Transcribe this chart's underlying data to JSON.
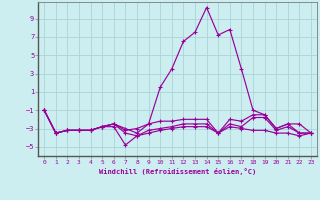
{
  "xlabel": "Windchill (Refroidissement éolien,°C)",
  "bg_color": "#cceef0",
  "grid_color": "#aad4d8",
  "line_color": "#990099",
  "spine_color": "#888888",
  "xlim_min": -0.5,
  "xlim_max": 23.5,
  "ylim_min": -6.0,
  "ylim_max": 10.8,
  "yticks": [
    -5,
    -3,
    -1,
    1,
    3,
    5,
    7,
    9
  ],
  "xticks": [
    0,
    1,
    2,
    3,
    4,
    5,
    6,
    7,
    8,
    9,
    10,
    11,
    12,
    13,
    14,
    15,
    16,
    17,
    18,
    19,
    20,
    21,
    22,
    23
  ],
  "hours": [
    0,
    1,
    2,
    3,
    4,
    5,
    6,
    7,
    8,
    9,
    10,
    11,
    12,
    13,
    14,
    15,
    16,
    17,
    18,
    19,
    20,
    21,
    22,
    23
  ],
  "line1": [
    -1.0,
    -3.5,
    -3.2,
    -3.2,
    -3.2,
    -2.8,
    -2.5,
    -3.0,
    -3.5,
    -2.5,
    1.5,
    3.5,
    6.5,
    7.5,
    10.2,
    7.2,
    7.8,
    3.5,
    -1.0,
    -1.5,
    -3.0,
    -2.5,
    -3.5,
    -3.5
  ],
  "line2": [
    -1.0,
    -3.5,
    -3.2,
    -3.2,
    -3.2,
    -2.8,
    -2.8,
    -4.8,
    -3.8,
    -3.5,
    -3.2,
    -3.0,
    -2.8,
    -2.8,
    -2.8,
    -3.5,
    -2.8,
    -3.0,
    -3.2,
    -3.2,
    -3.5,
    -3.5,
    -3.8,
    -3.5
  ],
  "line3": [
    -1.0,
    -3.5,
    -3.2,
    -3.2,
    -3.2,
    -2.8,
    -2.5,
    -3.2,
    -3.0,
    -2.5,
    -2.2,
    -2.2,
    -2.0,
    -2.0,
    -2.0,
    -3.5,
    -2.0,
    -2.2,
    -1.5,
    -1.5,
    -3.0,
    -2.5,
    -2.5,
    -3.5
  ],
  "line4": [
    -1.0,
    -3.5,
    -3.2,
    -3.2,
    -3.2,
    -2.8,
    -2.5,
    -3.5,
    -3.8,
    -3.2,
    -3.0,
    -2.8,
    -2.5,
    -2.5,
    -2.5,
    -3.5,
    -2.5,
    -2.8,
    -1.8,
    -1.8,
    -3.2,
    -2.8,
    -3.5,
    -3.5
  ]
}
